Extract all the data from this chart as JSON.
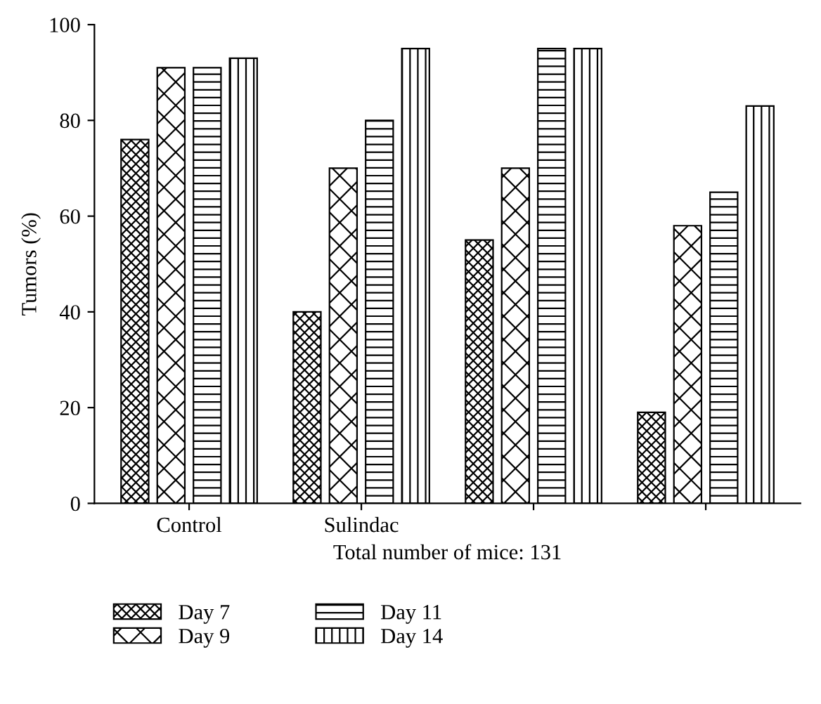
{
  "chart_data": {
    "type": "bar",
    "ylabel": "Tumors (%)",
    "xlabel": "Total number of mice: 131",
    "categories": [
      "Control",
      "Sulindac",
      null,
      null
    ],
    "series": [
      {
        "name": "Day 7",
        "color": "#000000",
        "values": [
          76,
          40,
          55,
          19
        ]
      },
      {
        "name": "Day 9",
        "color": "#000000",
        "values": [
          91,
          70,
          70,
          58
        ]
      },
      {
        "name": "Day 11",
        "color": "#000000",
        "values": [
          91,
          80,
          95,
          65
        ]
      },
      {
        "name": "Day 14",
        "color": "#000000",
        "values": [
          93,
          95,
          95,
          83
        ]
      }
    ],
    "ylim": [
      0,
      100
    ],
    "yticks": [
      0,
      20,
      40,
      60,
      80,
      100
    ],
    "grid": false,
    "legend": "bottom"
  }
}
